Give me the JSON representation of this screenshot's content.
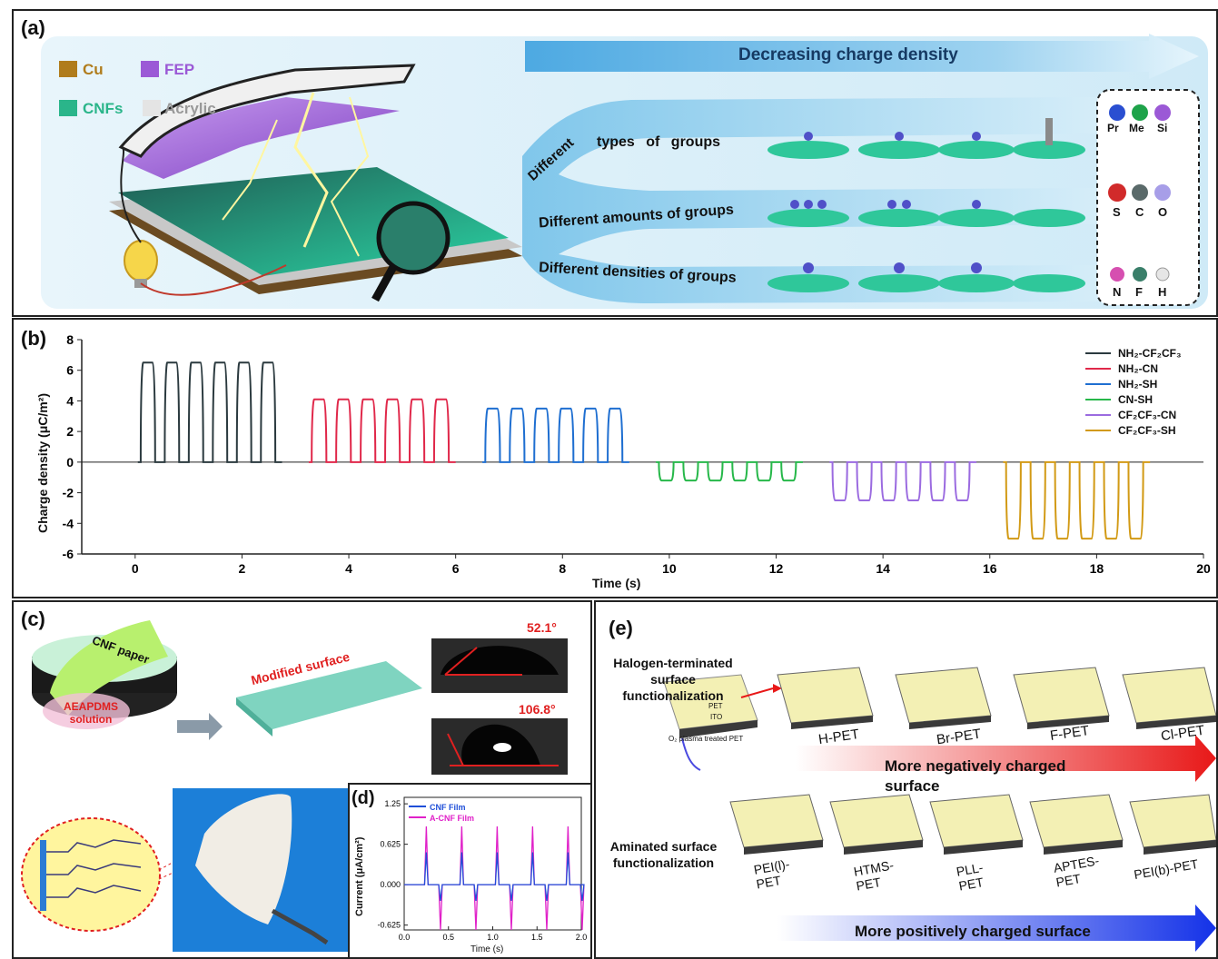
{
  "panel_a": {
    "label": "(a)",
    "materials": [
      "Cu",
      "FEP",
      "CNFs",
      "Acrylic"
    ],
    "arrow_text": "Decreasing charge density",
    "branch_labels": [
      "Different",
      "types of groups",
      "Different amounts of groups",
      "Different densities of groups"
    ],
    "atom_legend": [
      "Pr",
      "Me",
      "Si",
      "S",
      "C",
      "O",
      "N",
      "F",
      "H"
    ],
    "colors": {
      "cu": "#a8741a",
      "fep": "#9b59d6",
      "cnf": "#2ab58a",
      "arrow": "#5fb6e6",
      "bg": "#d6eef9"
    }
  },
  "panel_b": {
    "label": "(b)",
    "legend_html": [
      "NH₂-CF₂CF₃",
      "NH₂-CN",
      "NH₂-SH",
      "CN-SH",
      "CF₂CF₃-CN",
      "CF₂CF₃-SH"
    ]
  },
  "chart_data": [
    {
      "type": "line",
      "xlabel": "Time (s)",
      "ylabel": "Charge density (μC/m²)",
      "xlim": [
        -1,
        20
      ],
      "ylim": [
        -6,
        8
      ],
      "xticks": [
        0,
        2,
        4,
        6,
        8,
        10,
        12,
        14,
        16,
        18,
        20
      ],
      "yticks": [
        -6,
        -4,
        -2,
        0,
        2,
        4,
        6,
        8
      ],
      "series": [
        {
          "name": "NH₂-CF₂CF₃",
          "color": "#2b3a3f",
          "start": 0.05,
          "end": 2.75,
          "pulses": 6,
          "amplitude": 6.5
        },
        {
          "name": "NH₂-CN",
          "color": "#e0284a",
          "start": 3.25,
          "end": 6.0,
          "pulses": 6,
          "amplitude": 4.1
        },
        {
          "name": "NH₂-SH",
          "color": "#1f6fd1",
          "start": 6.5,
          "end": 9.25,
          "pulses": 6,
          "amplitude": 3.5
        },
        {
          "name": "CN-SH",
          "color": "#27b84a",
          "start": 9.75,
          "end": 12.5,
          "pulses": 6,
          "amplitude": -1.2
        },
        {
          "name": "CF₂CF₃-CN",
          "color": "#9b6be0",
          "start": 13.0,
          "end": 15.75,
          "pulses": 6,
          "amplitude": -2.5
        },
        {
          "name": "CF₂CF₃-SH",
          "color": "#d29a15",
          "start": 16.25,
          "end": 19.0,
          "pulses": 6,
          "amplitude": -5.0
        }
      ]
    },
    {
      "type": "line",
      "xlabel": "Time (s)",
      "ylabel": "Current (μA/cm²)",
      "xlim": [
        0,
        2.0
      ],
      "ylim": [
        -0.7,
        1.35
      ],
      "xticks": [
        "0.0",
        "0.5",
        "1.0",
        "1.5",
        "2.0"
      ],
      "yticks": [
        "-0.625",
        "0.000",
        "0.625",
        "1.25"
      ],
      "series": [
        {
          "name": "CNF Film",
          "color": "#1f4fd8",
          "pos_peak": 0.5,
          "neg_peak": -0.25
        },
        {
          "name": "A-CNF Film",
          "color": "#e020c8",
          "pos_peak": 0.9,
          "neg_peak": -0.7
        }
      ],
      "peaks_x": [
        0.25,
        0.65,
        1.05,
        1.45,
        1.85
      ]
    }
  ],
  "panel_c": {
    "label": "(c)",
    "cnf_paper": "CNF paper",
    "solution": "AEAPDMS solution",
    "modified": "Modified surface",
    "angle1": "52.1°",
    "angle2": "106.8°"
  },
  "panel_d": {
    "label": "(d)"
  },
  "panel_e": {
    "label": "(e)",
    "halogen_text": "Halogen-terminated surface functionalization",
    "amine_text": "Aminated surface functionalization",
    "plasma_text": "O₂ plasma treated PET",
    "pet_text": "PET",
    "ito_text": "ITO",
    "halogen_samples": [
      "H-PET",
      "Br-PET",
      "F-PET",
      "Cl-PET"
    ],
    "amine_samples": [
      "PEI(l)-PET",
      "HTMS-PET",
      "PLL-PET",
      "APTES-PET",
      "PEI(b)-PET"
    ],
    "neg_arrow": "More negatively charged surface",
    "pos_arrow": "More positively charged surface"
  }
}
